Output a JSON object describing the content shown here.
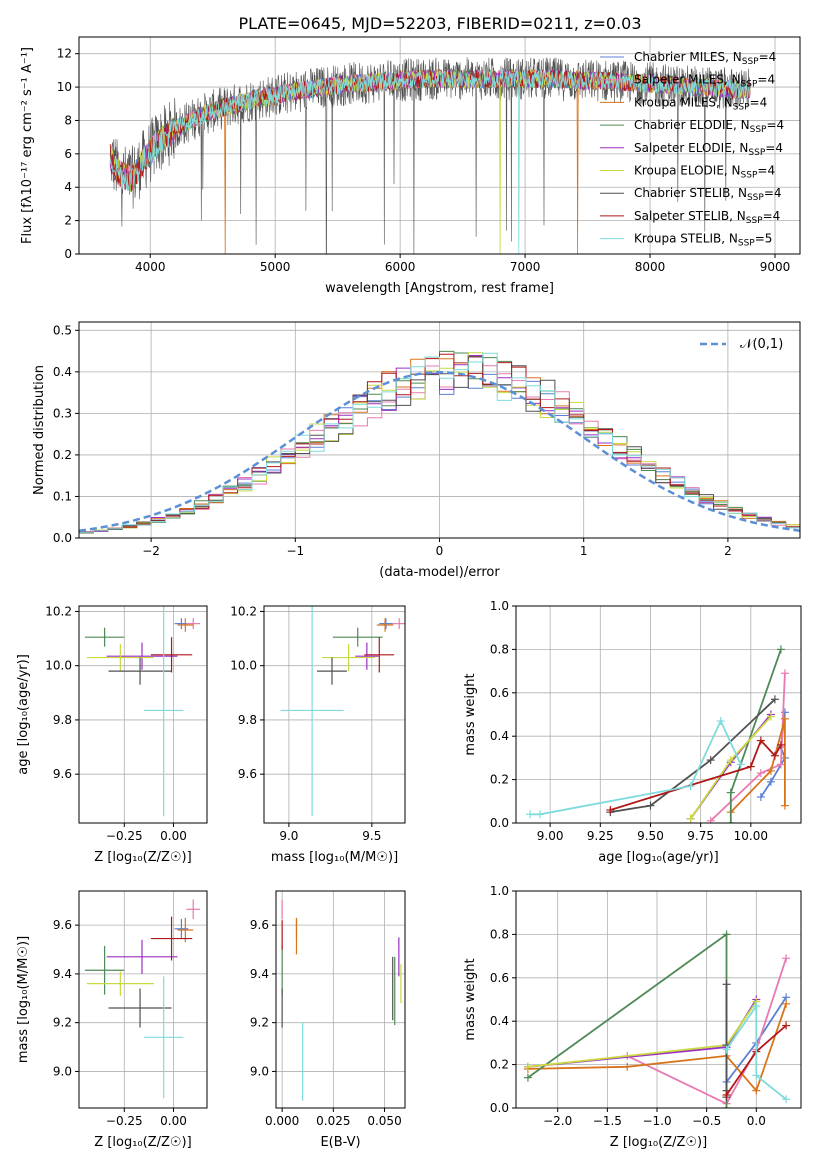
{
  "figure": {
    "title": "PLATE=0645, MJD=52203, FIBERID=0211, z=0.03"
  },
  "colors": {
    "Chabrier MILES": "#5b7fd6",
    "Salpeter MILES": "#e87ab0",
    "Kroupa MILES": "#d9731a",
    "Chabrier ELODIE": "#4f8a55",
    "Salpeter ELODIE": "#9b2fc4",
    "Kroupa ELODIE": "#c9d940",
    "Chabrier STELIB": "#505050",
    "Salpeter STELIB": "#b01818",
    "Kroupa STELIB": "#7fdbdb"
  },
  "chart_data": [
    {
      "id": "spectrum",
      "type": "line",
      "title": "PLATE=0645, MJD=52203, FIBERID=0211, z=0.03",
      "xlabel": "wavelength [Angstrom, rest frame]",
      "ylabel": "Flux [fλ10⁻¹⁷ erg cm⁻² s⁻¹ A⁻¹]",
      "xlim": [
        3430,
        9200
      ],
      "ylim": [
        0,
        13
      ],
      "xticks": [
        4000,
        5000,
        6000,
        7000,
        8000,
        9000
      ],
      "yticks": [
        0,
        2,
        4,
        6,
        8,
        10,
        12
      ],
      "legend": "top-right",
      "legend_entries": [
        "Chabrier MILES, N_SSP=4",
        "Salpeter MILES, N_SSP=4",
        "Kroupa MILES, N_SSP=4",
        "Chabrier ELODIE, N_SSP=4",
        "Salpeter ELODIE, N_SSP=4",
        "Kroupa ELODIE, N_SSP=4",
        "Chabrier STELIB, N_SSP=4",
        "Salpeter STELIB, N_SSP=4",
        "Kroupa STELIB, N_SSP=5"
      ],
      "legend_models": [
        "Chabrier MILES",
        "Salpeter MILES",
        "Kroupa MILES",
        "Chabrier ELODIE",
        "Salpeter ELODIE",
        "Kroupa ELODIE",
        "Chabrier STELIB",
        "Salpeter STELIB",
        "Kroupa STELIB"
      ],
      "continuum": {
        "x": [
          3680,
          3750,
          3850,
          3950,
          4050,
          4200,
          4400,
          4600,
          4800,
          5000,
          5200,
          5400,
          5600,
          5800,
          6000,
          6200,
          6400,
          6600,
          6800,
          7000,
          7200,
          7400,
          7600,
          7800,
          8000,
          8200,
          8400,
          8600,
          8800
        ],
        "y": [
          5.8,
          4.8,
          4.5,
          5.6,
          6.6,
          7.5,
          8.3,
          8.8,
          9.2,
          9.5,
          9.8,
          10.0,
          10.2,
          10.3,
          10.4,
          10.5,
          10.5,
          10.5,
          10.5,
          10.5,
          10.5,
          10.4,
          10.4,
          10.3,
          10.2,
          10.1,
          10.0,
          9.9,
          9.8
        ]
      },
      "data_span": [
        3680,
        8800
      ],
      "dropouts": [
        {
          "model": "Kroupa MILES",
          "x": 4600
        },
        {
          "model": "Kroupa MILES",
          "x": 7420
        },
        {
          "model": "Kroupa ELODIE",
          "x": 6800
        },
        {
          "model": "Kroupa STELIB",
          "x": 6950
        },
        {
          "model": "Chabrier STELIB",
          "x": 5410
        },
        {
          "model": "Chabrier STELIB",
          "x": 6110
        }
      ]
    },
    {
      "id": "residuals",
      "type": "histogram",
      "xlabel": "(data-model)/error",
      "ylabel": "Normed distribution",
      "xlim": [
        -2.5,
        2.5
      ],
      "ylim": [
        0,
        0.52
      ],
      "xticks": [
        -2,
        -1,
        0,
        1,
        2
      ],
      "yticks": [
        0.0,
        0.1,
        0.2,
        0.3,
        0.4,
        0.5
      ],
      "bin_width": 0.1,
      "legend": "top-right",
      "legend_label": "𝒩(0,1)",
      "gaussian": {
        "mean": 0,
        "sigma": 1,
        "color": "#5b8fd6"
      }
    },
    {
      "id": "age_vs_Z",
      "type": "errorbar",
      "xlabel": "Z [log₁₀(Z/Z☉)]",
      "ylabel": "age  [log₁₀(age/yr)]",
      "xlim": [
        -0.48,
        0.17
      ],
      "ylim": [
        9.42,
        10.22
      ],
      "xticks": [
        -0.25,
        0.0
      ],
      "yticks": [
        9.6,
        9.8,
        10.0,
        10.2
      ],
      "points": [
        {
          "model": "Chabrier MILES",
          "x": 0.04,
          "xerr": 0.035,
          "y": 10.155,
          "yerr": 0.02
        },
        {
          "model": "Salpeter MILES",
          "x": 0.1,
          "xerr": 0.035,
          "y": 10.155,
          "yerr": 0.02
        },
        {
          "model": "Kroupa MILES",
          "x": 0.06,
          "xerr": 0.04,
          "y": 10.15,
          "yerr": 0.025
        },
        {
          "model": "Chabrier ELODIE",
          "x": -0.35,
          "xerr": 0.1,
          "y": 10.105,
          "yerr": 0.035
        },
        {
          "model": "Salpeter ELODIE",
          "x": -0.16,
          "xerr": 0.18,
          "y": 10.035,
          "yerr": 0.05
        },
        {
          "model": "Kroupa ELODIE",
          "x": -0.27,
          "xerr": 0.17,
          "y": 10.03,
          "yerr": 0.05
        },
        {
          "model": "Chabrier STELIB",
          "x": -0.17,
          "xerr": 0.16,
          "y": 9.98,
          "yerr": 0.05
        },
        {
          "model": "Salpeter STELIB",
          "x": -0.01,
          "xerr": 0.105,
          "y": 10.04,
          "yerr": 0.065
        },
        {
          "model": "Kroupa STELIB",
          "x": -0.05,
          "xerr": 0.1,
          "y": 9.835,
          "yerr": 0.39
        }
      ]
    },
    {
      "id": "age_vs_mass",
      "type": "errorbar",
      "xlabel": "mass [log₁₀(M/M☉)]",
      "ylabel": "",
      "xlim": [
        8.85,
        9.7
      ],
      "ylim": [
        9.42,
        10.22
      ],
      "xticks": [
        9.0,
        9.5
      ],
      "yticks": [
        9.6,
        9.8,
        10.0,
        10.2
      ],
      "points": [
        {
          "model": "Chabrier MILES",
          "x": 9.585,
          "xerr": 0.04,
          "y": 10.155,
          "yerr": 0.02
        },
        {
          "model": "Salpeter MILES",
          "x": 9.665,
          "xerr": 0.04,
          "y": 10.155,
          "yerr": 0.02
        },
        {
          "model": "Kroupa MILES",
          "x": 9.58,
          "xerr": 0.05,
          "y": 10.15,
          "yerr": 0.025
        },
        {
          "model": "Chabrier ELODIE",
          "x": 9.415,
          "xerr": 0.15,
          "y": 10.105,
          "yerr": 0.035
        },
        {
          "model": "Salpeter ELODIE",
          "x": 9.47,
          "xerr": 0.07,
          "y": 10.035,
          "yerr": 0.05
        },
        {
          "model": "Kroupa ELODIE",
          "x": 9.36,
          "xerr": 0.16,
          "y": 10.03,
          "yerr": 0.05
        },
        {
          "model": "Chabrier STELIB",
          "x": 9.26,
          "xerr": 0.09,
          "y": 9.98,
          "yerr": 0.05
        },
        {
          "model": "Salpeter STELIB",
          "x": 9.545,
          "xerr": 0.09,
          "y": 10.04,
          "yerr": 0.065
        },
        {
          "model": "Kroupa STELIB",
          "x": 9.14,
          "xerr": 0.19,
          "y": 9.835,
          "yerr": 0.39
        }
      ]
    },
    {
      "id": "weight_vs_age",
      "type": "line",
      "xlabel": "age  [log₁₀(age/yr)]",
      "ylabel": "mass weight",
      "xlim": [
        8.83,
        10.25
      ],
      "ylim": [
        0,
        1
      ],
      "xticks": [
        9.0,
        9.25,
        9.5,
        9.75,
        10.0
      ],
      "yticks": [
        0.0,
        0.2,
        0.4,
        0.6,
        0.8,
        1.0
      ],
      "series": [
        {
          "model": "Chabrier MILES",
          "x": [
            10.05,
            10.1,
            10.17,
            10.15,
            10.17
          ],
          "y": [
            0.12,
            0.19,
            0.3,
            0.35,
            0.51
          ]
        },
        {
          "model": "Salpeter MILES",
          "x": [
            9.8,
            10.05,
            10.15,
            10.17
          ],
          "y": [
            0.01,
            0.23,
            0.27,
            0.69
          ]
        },
        {
          "model": "Kroupa MILES",
          "x": [
            9.9,
            10.1,
            10.17,
            10.17
          ],
          "y": [
            0.05,
            0.24,
            0.48,
            0.08
          ]
        },
        {
          "model": "Chabrier ELODIE",
          "x": [
            9.9,
            9.9,
            10.15
          ],
          "y": [
            0.0,
            0.14,
            0.8
          ]
        },
        {
          "model": "Salpeter ELODIE",
          "x": [
            9.7,
            9.9,
            10.1
          ],
          "y": [
            0.02,
            0.28,
            0.5
          ]
        },
        {
          "model": "Kroupa ELODIE",
          "x": [
            9.7,
            9.9,
            10.1
          ],
          "y": [
            0.02,
            0.29,
            0.49
          ]
        },
        {
          "model": "Chabrier STELIB",
          "x": [
            9.3,
            9.5,
            9.8,
            10.12
          ],
          "y": [
            0.05,
            0.08,
            0.29,
            0.57
          ]
        },
        {
          "model": "Salpeter STELIB",
          "x": [
            9.3,
            10.0,
            10.05,
            10.12,
            10.15
          ],
          "y": [
            0.06,
            0.26,
            0.38,
            0.31,
            0.36
          ]
        },
        {
          "model": "Kroupa STELIB",
          "x": [
            8.9,
            8.95,
            9.7,
            9.85,
            9.95
          ],
          "y": [
            0.04,
            0.04,
            0.17,
            0.47,
            0.27
          ]
        }
      ]
    },
    {
      "id": "mass_vs_Z",
      "type": "errorbar",
      "xlabel": "Z [log₁₀(Z/Z☉)]",
      "ylabel": "mass [log₁₀(M/M☉)]",
      "xlim": [
        -0.48,
        0.17
      ],
      "ylim": [
        8.85,
        9.74
      ],
      "xticks": [
        -0.25,
        0.0
      ],
      "yticks": [
        9.0,
        9.2,
        9.4,
        9.6
      ],
      "points": [
        {
          "model": "Chabrier MILES",
          "x": 0.04,
          "xerr": 0.035,
          "y": 9.585,
          "yerr": 0.04
        },
        {
          "model": "Salpeter MILES",
          "x": 0.1,
          "xerr": 0.035,
          "y": 9.665,
          "yerr": 0.04
        },
        {
          "model": "Kroupa MILES",
          "x": 0.06,
          "xerr": 0.04,
          "y": 9.58,
          "yerr": 0.05
        },
        {
          "model": "Chabrier ELODIE",
          "x": -0.35,
          "xerr": 0.1,
          "y": 9.415,
          "yerr": 0.1
        },
        {
          "model": "Salpeter ELODIE",
          "x": -0.16,
          "xerr": 0.18,
          "y": 9.47,
          "yerr": 0.07
        },
        {
          "model": "Kroupa ELODIE",
          "x": -0.27,
          "xerr": 0.17,
          "y": 9.36,
          "yerr": 0.05
        },
        {
          "model": "Chabrier STELIB",
          "x": -0.17,
          "xerr": 0.16,
          "y": 9.26,
          "yerr": 0.08
        },
        {
          "model": "Salpeter STELIB",
          "x": -0.01,
          "xerr": 0.105,
          "y": 9.545,
          "yerr": 0.09
        },
        {
          "model": "Kroupa STELIB",
          "x": -0.05,
          "xerr": 0.1,
          "y": 9.14,
          "yerr": 0.25
        }
      ]
    },
    {
      "id": "mass_vs_ebv",
      "type": "errorbar",
      "xlabel": "E(B-V)",
      "ylabel": "",
      "xlim": [
        -0.003,
        0.06
      ],
      "ylim": [
        8.85,
        9.74
      ],
      "xticks": [
        0.0,
        0.025,
        0.05
      ],
      "yticks": [
        9.0,
        9.2,
        9.4,
        9.6
      ],
      "points": [
        {
          "model": "Chabrier MILES",
          "x": 0.007,
          "xerr": 0,
          "y": 9.585,
          "yerr": 0.04
        },
        {
          "model": "Salpeter MILES",
          "x": 0.0,
          "xerr": 0,
          "y": 9.665,
          "yerr": 0.04
        },
        {
          "model": "Kroupa MILES",
          "x": 0.007,
          "xerr": 0,
          "y": 9.555,
          "yerr": 0.075
        },
        {
          "model": "Chabrier ELODIE",
          "x": 0.0,
          "xerr": 0,
          "y": 9.415,
          "yerr": 0.1
        },
        {
          "model": "Salpeter ELODIE",
          "x": 0.057,
          "xerr": 0,
          "y": 9.47,
          "yerr": 0.08
        },
        {
          "model": "Kroupa ELODIE",
          "x": 0.058,
          "xerr": 0,
          "y": 9.36,
          "yerr": 0.08
        },
        {
          "model": "Chabrier STELIB",
          "x": 0.0,
          "xerr": 0,
          "y": 9.26,
          "yerr": 0.08
        },
        {
          "model": "Salpeter STELIB",
          "x": 0.0,
          "xerr": 0,
          "y": 9.56,
          "yerr": 0.06
        },
        {
          "model": "Kroupa STELIB",
          "x": 0.01,
          "xerr": 0,
          "y": 9.04,
          "yerr": 0.16
        },
        {
          "model": "Chabrier STELIB",
          "x": 0.054,
          "xerr": 0,
          "y": 9.34,
          "yerr": 0.13
        },
        {
          "model": "Chabrier ELODIE",
          "x": 0.055,
          "xerr": 0,
          "y": 9.33,
          "yerr": 0.14
        }
      ]
    },
    {
      "id": "weight_vs_Z",
      "type": "line",
      "xlabel": "Z [log₁₀(Z/Z☉)]",
      "ylabel": "mass weight",
      "xlim": [
        -2.42,
        0.45
      ],
      "ylim": [
        0,
        1
      ],
      "xticks": [
        -2.0,
        -1.5,
        -1.0,
        -0.5,
        0.0
      ],
      "yticks": [
        0.0,
        0.2,
        0.4,
        0.6,
        0.8,
        1.0
      ],
      "series": [
        {
          "model": "Chabrier MILES",
          "x": [
            -0.3,
            0.0,
            0.3
          ],
          "y": [
            0.12,
            0.3,
            0.51
          ]
        },
        {
          "model": "Salpeter MILES",
          "x": [
            -1.3,
            -0.3,
            0.0,
            0.3
          ],
          "y": [
            0.24,
            0.02,
            0.27,
            0.69
          ]
        },
        {
          "model": "Kroupa MILES",
          "x": [
            -2.3,
            -1.3,
            -0.3,
            0.0,
            0.3
          ],
          "y": [
            0.18,
            0.19,
            0.24,
            0.08,
            0.48
          ]
        },
        {
          "model": "Chabrier ELODIE",
          "x": [
            -2.3,
            -0.3,
            -0.3
          ],
          "y": [
            0.14,
            0.8,
            0.0
          ]
        },
        {
          "model": "Salpeter ELODIE",
          "x": [
            -2.3,
            -0.3,
            0.0
          ],
          "y": [
            0.19,
            0.28,
            0.5
          ]
        },
        {
          "model": "Kroupa ELODIE",
          "x": [
            -2.3,
            -0.3,
            0.0
          ],
          "y": [
            0.19,
            0.29,
            0.49
          ]
        },
        {
          "model": "Chabrier STELIB",
          "x": [
            -0.3,
            -0.3,
            -0.3,
            -0.3
          ],
          "y": [
            0.05,
            0.08,
            0.29,
            0.57
          ]
        },
        {
          "model": "Salpeter STELIB",
          "x": [
            -0.3,
            0.0,
            0.3
          ],
          "y": [
            0.06,
            0.26,
            0.38
          ]
        },
        {
          "model": "Kroupa STELIB",
          "x": [
            -0.3,
            0.0,
            0.0,
            0.3
          ],
          "y": [
            0.27,
            0.47,
            0.15,
            0.04
          ]
        }
      ]
    }
  ]
}
